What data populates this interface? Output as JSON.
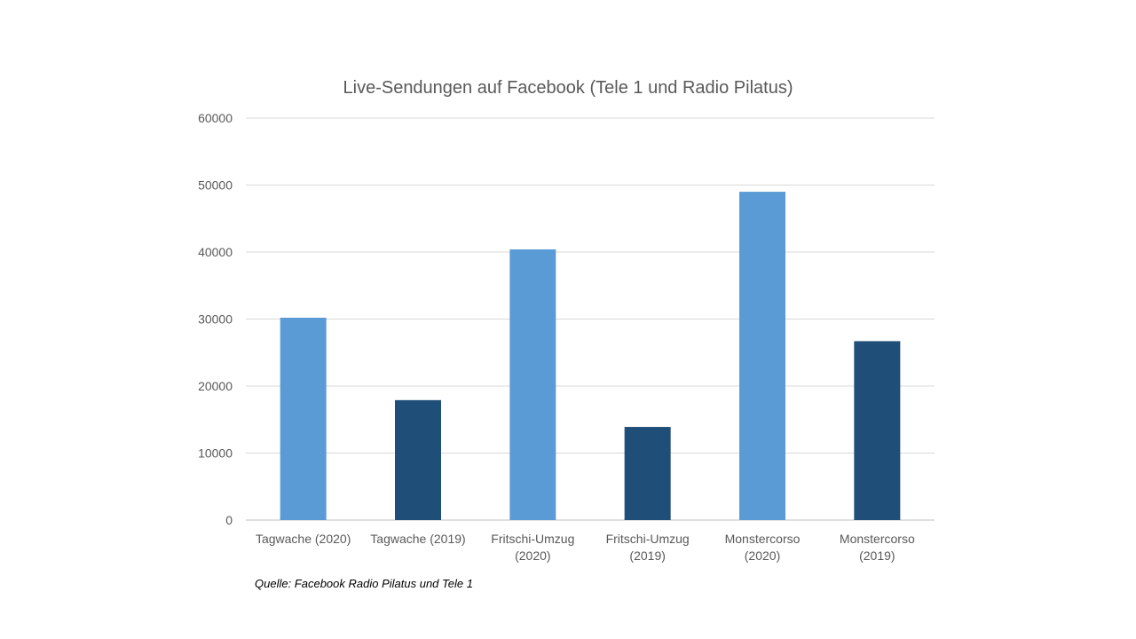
{
  "chart_data": {
    "type": "bar",
    "title": "Live-Sendungen auf Facebook (Tele 1 und Radio Pilatus)",
    "categories": [
      [
        "Tagwache (2020)"
      ],
      [
        "Tagwache (2019)"
      ],
      [
        "Fritschi-Umzug",
        "(2020)"
      ],
      [
        "Fritschi-Umzug",
        "(2019)"
      ],
      [
        "Monstercorso",
        "(2020)"
      ],
      [
        "Monstercorso",
        "(2019)"
      ]
    ],
    "values": [
      30200,
      17900,
      40400,
      13900,
      49000,
      26700
    ],
    "bar_colors": [
      "#5b9bd5",
      "#1f4e79",
      "#5b9bd5",
      "#1f4e79",
      "#5b9bd5",
      "#1f4e79"
    ],
    "ylim": [
      0,
      60000
    ],
    "yticks": [
      0,
      10000,
      20000,
      30000,
      40000,
      50000,
      60000
    ],
    "grid": true,
    "xlabel": "",
    "ylabel": ""
  },
  "source_note": "Quelle: Facebook Radio Pilatus und Tele 1"
}
